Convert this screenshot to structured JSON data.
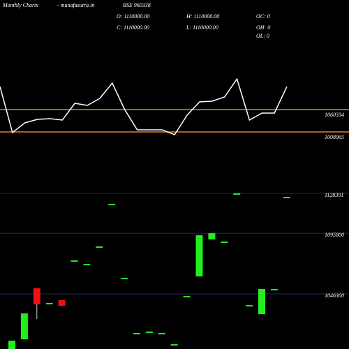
{
  "chart_data": [
    {
      "type": "line",
      "title": "Monthly Charts",
      "subtitle": "- munafasutra.in",
      "symbol": "BSE 960338",
      "stats": [
        "O: 1110000.00",
        "H: 1110000.00",
        "OC: 0",
        "C: 1110000.00",
        "L: 1110000.00",
        "OH: 0",
        "OL: 0"
      ],
      "values": [
        1113308,
        1007360,
        1029834,
        1037860,
        1039465,
        1036255,
        1074782,
        1069966,
        1086018,
        1121335,
        1060334,
        1013781,
        1013781,
        1013781,
        1002544,
        1047492,
        1077992,
        1079597,
        1089229,
        1130966,
        1036255,
        1052308,
        1052308,
        1113308
      ],
      "color": "#ffffff",
      "ylim": [
        943000,
        1168000
      ],
      "hlines": [
        1060334,
        1008965
      ],
      "hline_color": "#e8801a"
    },
    {
      "type": "candlestick",
      "open": [
        1001270,
        1009250,
        1050860,
        1038890,
        1041170,
        1073660,
        1070810,
        1085060,
        1119830,
        1059410,
        1014380,
        1015520,
        1014380,
        1005260,
        1044590,
        1060550,
        1090760,
        1089050,
        1128380,
        1037180,
        1029770,
        1050290,
        1125530
      ],
      "high": [
        1008110,
        1030340,
        1050860,
        1038890,
        1041170,
        1073660,
        1070810,
        1085060,
        1119830,
        1059410,
        1014380,
        1015520,
        1014380,
        1005260,
        1044590,
        1094180,
        1095890,
        1089050,
        1128380,
        1037180,
        1050290,
        1050290,
        1125530
      ],
      "low": [
        1001270,
        1009250,
        1025780,
        1038890,
        1036610,
        1073660,
        1070810,
        1085060,
        1119830,
        1059410,
        1014380,
        1015520,
        1014380,
        1005260,
        1044590,
        1060550,
        1090760,
        1089050,
        1128380,
        1037180,
        1029770,
        1050290,
        1125530
      ],
      "close": [
        1008110,
        1030340,
        1037750,
        1038890,
        1036610,
        1073660,
        1070810,
        1085060,
        1119830,
        1059410,
        1014380,
        1015520,
        1014380,
        1005260,
        1044590,
        1094180,
        1095890,
        1089050,
        1128380,
        1037180,
        1050290,
        1050290,
        1125530
      ],
      "up_color": "#22ee22",
      "down_color": "#ee1111",
      "ylim": [
        1001300,
        1143800
      ],
      "hlines": [
        1128391,
        1095800,
        1046300
      ],
      "hline_color": "#20206e"
    }
  ]
}
